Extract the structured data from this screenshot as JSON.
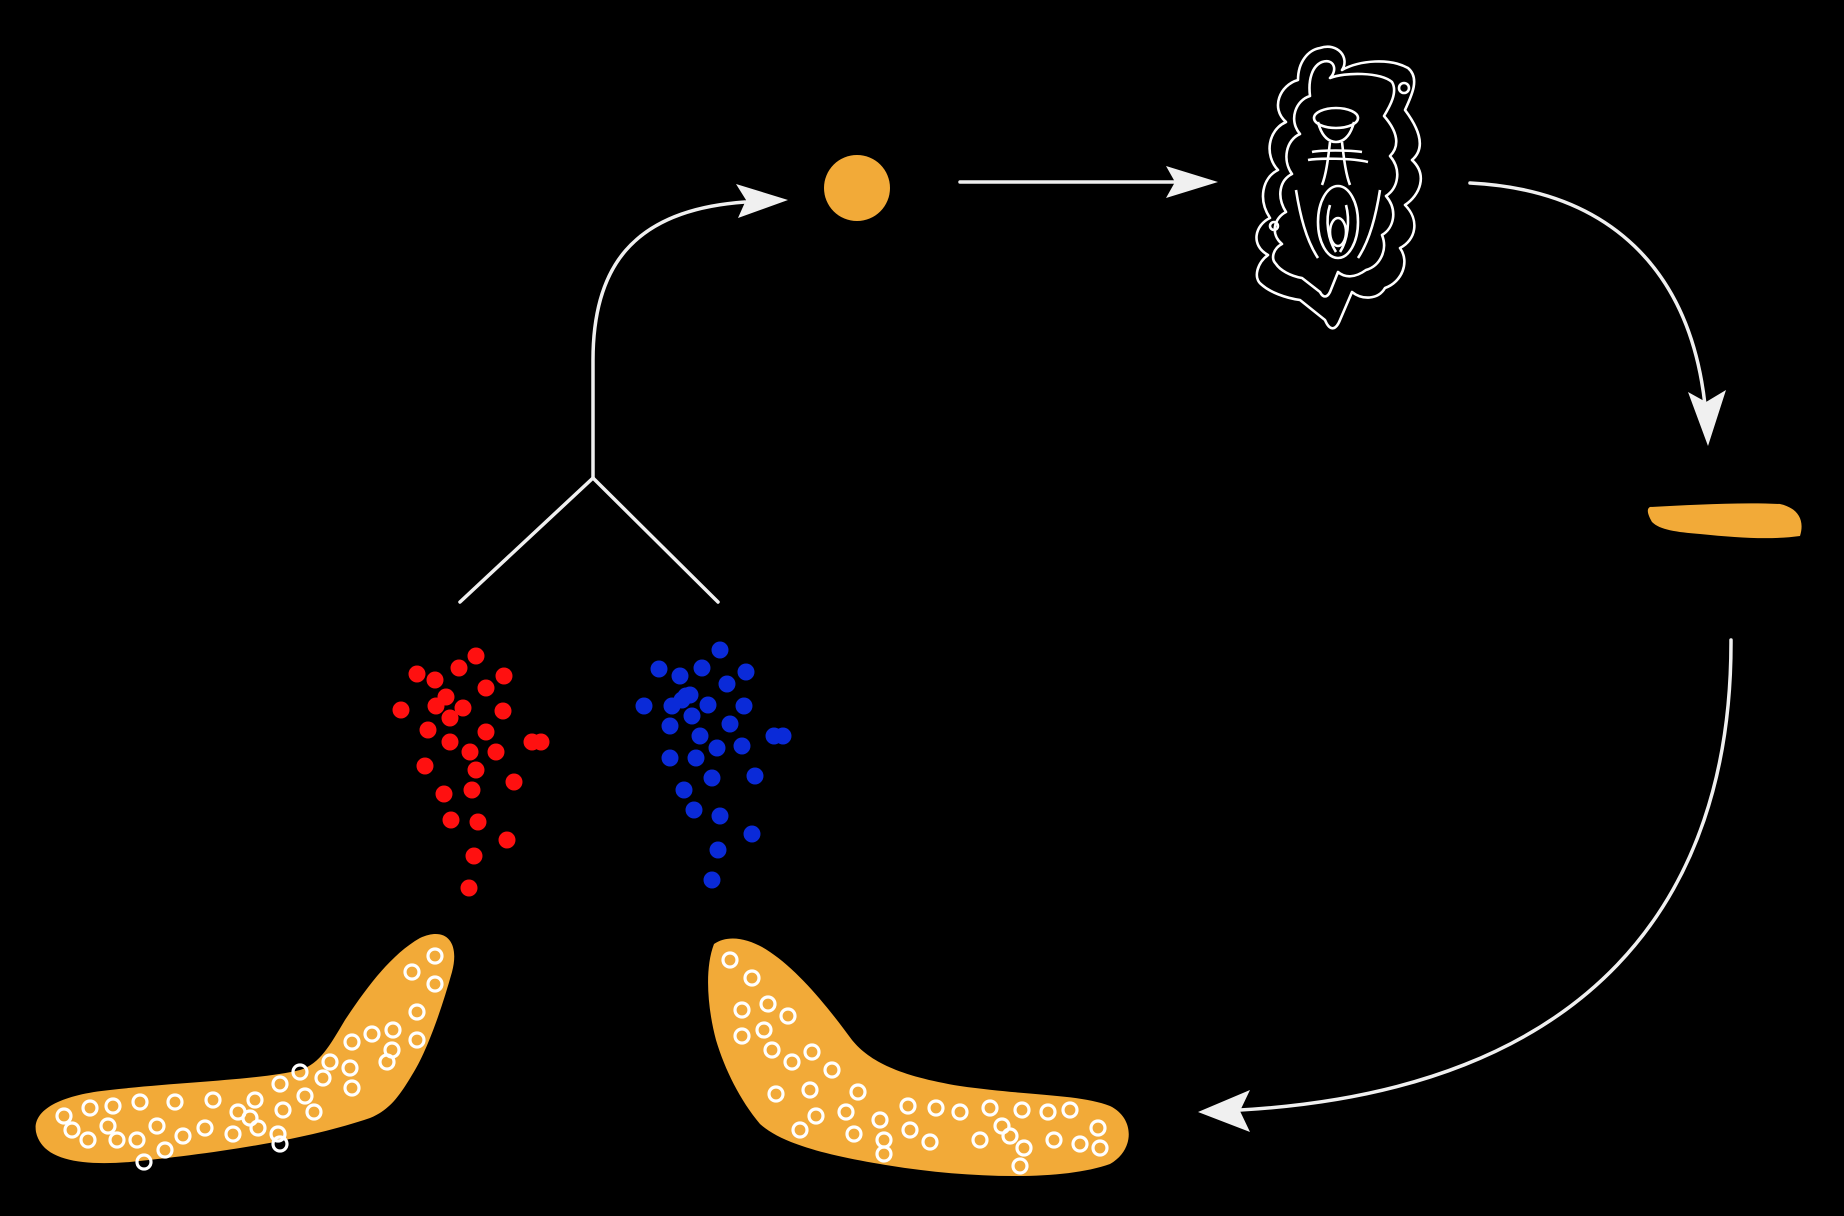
{
  "diagram": {
    "background": "#000000",
    "colors": {
      "line": "#f0f0f0",
      "orange": "#f2aa38",
      "red": "#ff1010",
      "blue": "#0a2ad8",
      "dot_outline": "#ffffff"
    },
    "nodes": [
      {
        "id": "zygote",
        "icon": "orange-cell-icon"
      },
      {
        "id": "embryo",
        "icon": "embryo-outline-icon"
      },
      {
        "id": "larva",
        "icon": "flat-larva-icon"
      },
      {
        "id": "adult-left",
        "icon": "worm-body-icon",
        "gamete": "red"
      },
      {
        "id": "adult-right",
        "icon": "worm-body-icon",
        "gamete": "blue"
      }
    ],
    "edges": [
      {
        "from": "zygote",
        "to": "embryo"
      },
      {
        "from": "embryo",
        "to": "larva"
      },
      {
        "from": "larva",
        "to": "adult-right"
      },
      {
        "from": "red-gametes",
        "to": "zygote",
        "merge_with": "blue-gametes"
      }
    ],
    "gamete_clusters": [
      {
        "color": "red",
        "count": 28
      },
      {
        "color": "blue",
        "count": 31
      }
    ]
  }
}
